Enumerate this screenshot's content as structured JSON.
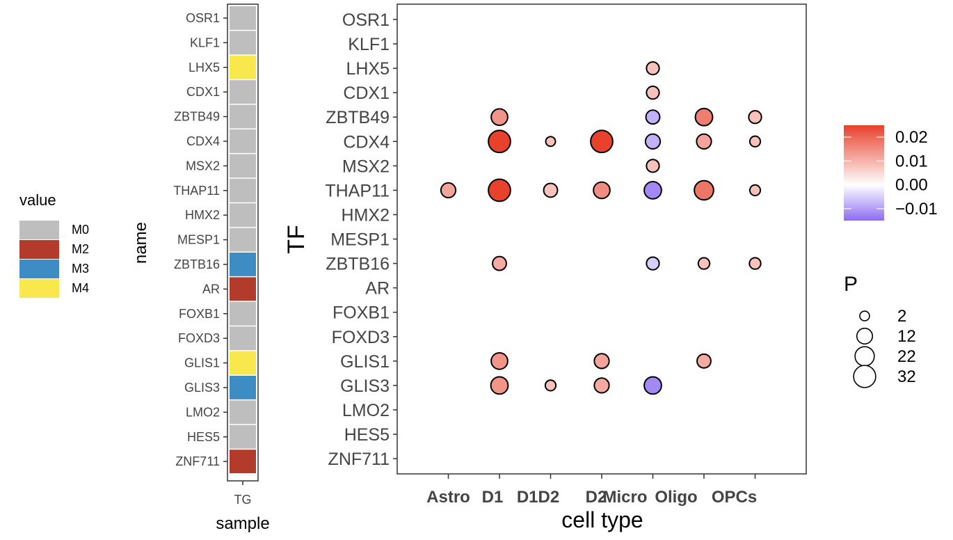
{
  "chart_data": [
    {
      "type": "heatmap",
      "ylabel": "name",
      "xlabel": "sample",
      "columns": [
        "TG"
      ],
      "rows": [
        "OSR1",
        "KLF1",
        "LHX5",
        "CDX1",
        "ZBTB49",
        "CDX4",
        "MSX2",
        "THAP11",
        "HMX2",
        "MESP1",
        "ZBTB16",
        "AR",
        "FOXB1",
        "FOXD3",
        "GLIS1",
        "GLIS3",
        "LMO2",
        "HES5",
        "ZNF711"
      ],
      "values": [
        "M0",
        "M0",
        "M4",
        "M0",
        "M0",
        "M0",
        "M0",
        "M0",
        "M0",
        "M0",
        "M3",
        "M2",
        "M0",
        "M0",
        "M4",
        "M3",
        "M0",
        "M0",
        "M2"
      ],
      "legend": {
        "title": "value",
        "items": [
          {
            "label": "M0",
            "color": "#bebebe"
          },
          {
            "label": "M2",
            "color": "#b23b2c"
          },
          {
            "label": "M3",
            "color": "#3d8dc4"
          },
          {
            "label": "M4",
            "color": "#f8e84d"
          }
        ]
      }
    },
    {
      "type": "scatter",
      "xlabel": "cell type",
      "ylabel": "TF",
      "x_categories": [
        "Astro",
        "D1",
        "D1D2",
        "D2",
        "Micro",
        "Oligo",
        "OPCs"
      ],
      "y_categories": [
        "OSR1",
        "KLF1",
        "LHX5",
        "CDX1",
        "ZBTB49",
        "CDX4",
        "MSX2",
        "THAP11",
        "HMX2",
        "MESP1",
        "ZBTB16",
        "AR",
        "FOXB1",
        "FOXD3",
        "GLIS1",
        "GLIS3",
        "LMO2",
        "HES5",
        "ZNF711"
      ],
      "points": [
        {
          "x": "Micro",
          "y": "LHX5",
          "value": 0.008,
          "P": 6
        },
        {
          "x": "Micro",
          "y": "CDX1",
          "value": 0.008,
          "P": 6
        },
        {
          "x": "D1",
          "y": "ZBTB49",
          "value": 0.014,
          "P": 14
        },
        {
          "x": "Micro",
          "y": "ZBTB49",
          "value": -0.008,
          "P": 8
        },
        {
          "x": "Oligo",
          "y": "ZBTB49",
          "value": 0.017,
          "P": 16
        },
        {
          "x": "OPCs",
          "y": "ZBTB49",
          "value": 0.008,
          "P": 6
        },
        {
          "x": "D1",
          "y": "CDX4",
          "value": 0.025,
          "P": 32
        },
        {
          "x": "D1D2",
          "y": "CDX4",
          "value": 0.008,
          "P": 2
        },
        {
          "x": "D2",
          "y": "CDX4",
          "value": 0.025,
          "P": 32
        },
        {
          "x": "Micro",
          "y": "CDX4",
          "value": -0.008,
          "P": 10
        },
        {
          "x": "Oligo",
          "y": "CDX4",
          "value": 0.012,
          "P": 10
        },
        {
          "x": "OPCs",
          "y": "CDX4",
          "value": 0.008,
          "P": 3
        },
        {
          "x": "Micro",
          "y": "MSX2",
          "value": 0.008,
          "P": 6
        },
        {
          "x": "Astro",
          "y": "THAP11",
          "value": 0.012,
          "P": 10
        },
        {
          "x": "D1",
          "y": "THAP11",
          "value": 0.025,
          "P": 32
        },
        {
          "x": "D1D2",
          "y": "THAP11",
          "value": 0.008,
          "P": 8
        },
        {
          "x": "D2",
          "y": "THAP11",
          "value": 0.015,
          "P": 14
        },
        {
          "x": "Micro",
          "y": "THAP11",
          "value": -0.012,
          "P": 16
        },
        {
          "x": "Oligo",
          "y": "THAP11",
          "value": 0.018,
          "P": 22
        },
        {
          "x": "OPCs",
          "y": "THAP11",
          "value": 0.008,
          "P": 3
        },
        {
          "x": "D1",
          "y": "ZBTB16",
          "value": 0.011,
          "P": 8
        },
        {
          "x": "Micro",
          "y": "ZBTB16",
          "value": -0.005,
          "P": 6
        },
        {
          "x": "Oligo",
          "y": "ZBTB16",
          "value": 0.008,
          "P": 4
        },
        {
          "x": "OPCs",
          "y": "ZBTB16",
          "value": 0.008,
          "P": 4
        },
        {
          "x": "D1",
          "y": "GLIS1",
          "value": 0.014,
          "P": 14
        },
        {
          "x": "D2",
          "y": "GLIS1",
          "value": 0.012,
          "P": 10
        },
        {
          "x": "Oligo",
          "y": "GLIS1",
          "value": 0.011,
          "P": 8
        },
        {
          "x": "D1",
          "y": "GLIS3",
          "value": 0.014,
          "P": 16
        },
        {
          "x": "D1D2",
          "y": "GLIS3",
          "value": 0.008,
          "P": 3
        },
        {
          "x": "D2",
          "y": "GLIS3",
          "value": 0.011,
          "P": 10
        },
        {
          "x": "Micro",
          "y": "GLIS3",
          "value": -0.012,
          "P": 16
        }
      ],
      "color_scale": {
        "ticks": [
          "0.02",
          "0.01",
          "0.00",
          "−0.01"
        ],
        "tick_values": [
          0.02,
          0.01,
          0.0,
          -0.01
        ],
        "range": [
          -0.015,
          0.025
        ],
        "colors": {
          "low": "#8c6cf2",
          "mid": "#ffffff",
          "high": "#e8412c"
        }
      },
      "size_legend": {
        "title": "P",
        "ticks": [
          "2",
          "12",
          "22",
          "32"
        ],
        "tick_values": [
          2,
          12,
          22,
          32
        ]
      }
    }
  ]
}
